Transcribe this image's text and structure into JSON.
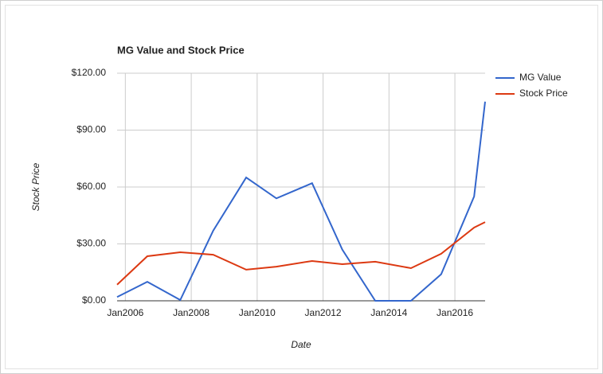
{
  "chart_data": {
    "type": "line",
    "title": "MG Value and Stock Price",
    "x_label": "Date",
    "y_label": "Stock Price",
    "x": [
      "2005-10",
      "2006-09",
      "2007-09",
      "2008-09",
      "2009-09",
      "2010-08",
      "2011-09",
      "2012-08",
      "2013-08",
      "2014-09",
      "2015-08",
      "2016-08",
      "2016-12"
    ],
    "series": [
      {
        "name": "MG Value",
        "color": "#3366cc",
        "values": [
          2,
          10,
          0.4,
          37,
          65,
          54,
          62,
          27,
          0,
          0,
          14,
          55,
          105
        ]
      },
      {
        "name": "Stock Price",
        "color": "#dc3912",
        "values": [
          8.5,
          23.5,
          25.6,
          24.3,
          16.4,
          18,
          21,
          19.3,
          20.6,
          17.2,
          24.8,
          38.6,
          41.5
        ]
      }
    ],
    "xlim": [
      "2005-10",
      "2016-12"
    ],
    "xticks": [
      {
        "value": "2006-01",
        "label": "Jan2006"
      },
      {
        "value": "2008-01",
        "label": "Jan2008"
      },
      {
        "value": "2010-01",
        "label": "Jan2010"
      },
      {
        "value": "2012-01",
        "label": "Jan2012"
      },
      {
        "value": "2014-01",
        "label": "Jan2014"
      },
      {
        "value": "2016-01",
        "label": "Jan2016"
      }
    ],
    "ylim": [
      0,
      120
    ],
    "yticks": [
      {
        "value": 0,
        "label": "$0.00"
      },
      {
        "value": 30,
        "label": "$30.00"
      },
      {
        "value": 60,
        "label": "$60.00"
      },
      {
        "value": 90,
        "label": "$90.00"
      },
      {
        "value": 120,
        "label": "$120.00"
      }
    ],
    "grid": true,
    "legend": "right"
  }
}
